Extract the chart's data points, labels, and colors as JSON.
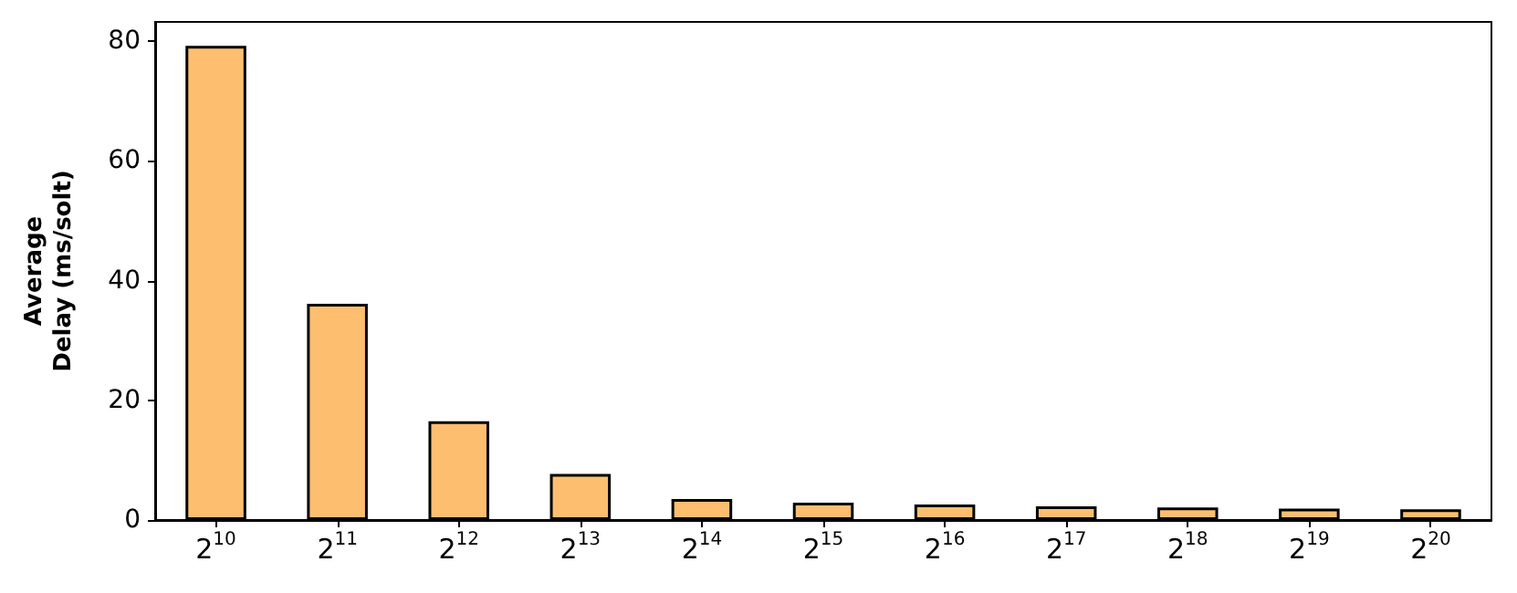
{
  "chart_data": {
    "type": "bar",
    "ylabel": "Average\nDelay (ms/solt)",
    "categories": [
      "2$^{10}$",
      "2$^{11}$",
      "2$^{12}$",
      "2$^{13}$",
      "2$^{14}$",
      "2$^{15}$",
      "2$^{16}$",
      "2$^{17}$",
      "2$^{18}$",
      "2$^{19}$",
      "2$^{20}$"
    ],
    "values": [
      79.2,
      36.1,
      16.5,
      7.7,
      3.5,
      2.9,
      2.6,
      2.3,
      2.1,
      1.9,
      1.8
    ],
    "color": "#fdbf6f",
    "ylim": [
      0,
      83.2
    ],
    "yticks": [
      0,
      20,
      40,
      60,
      80
    ],
    "grid": false
  }
}
